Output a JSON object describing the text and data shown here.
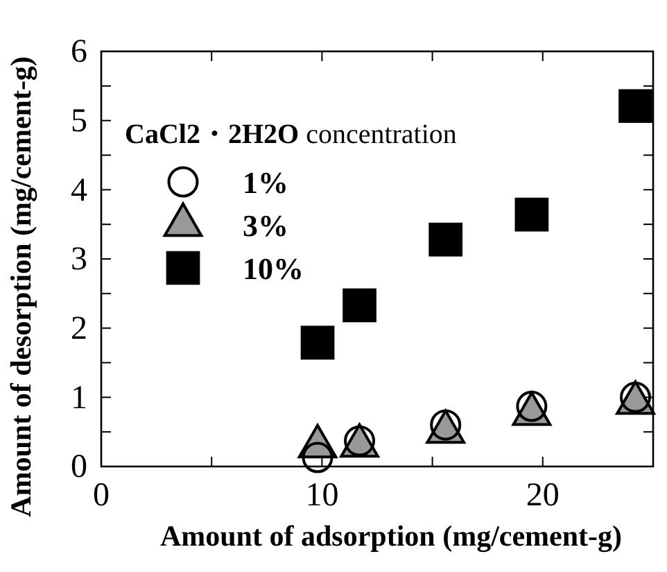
{
  "chart_data": {
    "type": "scatter",
    "xlabel": "Amount of adsorption (mg/cement-g)",
    "ylabel": "Amount of desorption (mg/cement-g)",
    "legend_title": "CaCl2・2H2O concentration",
    "legend": "top left",
    "grid": false,
    "x": [
      9.8,
      11.7,
      15.6,
      19.5,
      24.2
    ],
    "series": [
      {
        "name": "1%",
        "color": "#000000",
        "marker": "circle",
        "values": [
          0.13,
          0.37,
          0.6,
          0.87,
          1.0
        ]
      },
      {
        "name": "3%",
        "color": "#999999",
        "marker": "triangle",
        "values": [
          0.29,
          0.3,
          0.5,
          0.76,
          0.92
        ]
      },
      {
        "name": "10%",
        "color": "#000000",
        "marker": "square",
        "values": [
          1.79,
          2.33,
          3.28,
          3.64,
          5.21
        ]
      }
    ],
    "xlim": [
      0,
      25
    ],
    "xticks": [
      0,
      {
        "value": 5,
        "label": null
      },
      10,
      {
        "value": 15,
        "label": null
      },
      20
    ],
    "ylim": [
      0,
      6
    ],
    "yticks": [
      0,
      {
        "value": 0.5,
        "label": null
      },
      1,
      {
        "value": 1.5,
        "label": null
      },
      2,
      {
        "value": 2.5,
        "label": null
      },
      3,
      {
        "value": 3.5,
        "label": null
      },
      4,
      {
        "value": 4.5,
        "label": null
      },
      5,
      {
        "value": 5.5,
        "label": null
      },
      6
    ]
  }
}
